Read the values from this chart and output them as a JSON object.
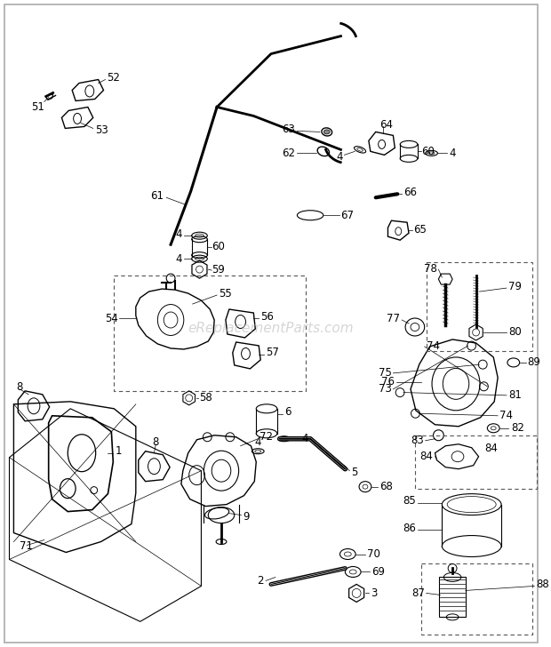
{
  "background_color": "#ffffff",
  "watermark_text": "eReplacementParts.com",
  "watermark_color": "#bbbbbb",
  "watermark_fontsize": 11,
  "fig_width": 6.2,
  "fig_height": 7.28,
  "dpi": 100
}
